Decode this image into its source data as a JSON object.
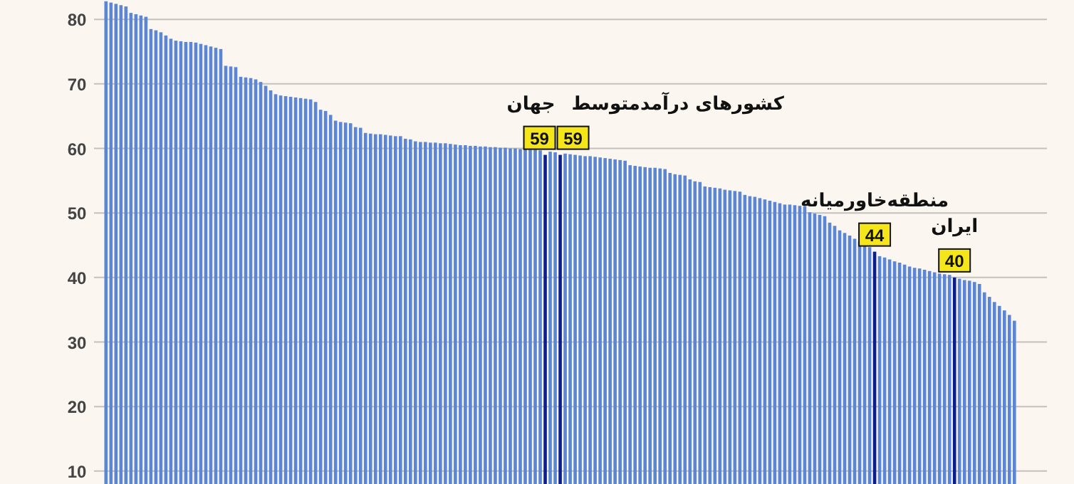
{
  "chart_data": {
    "type": "bar",
    "categories": [
      null,
      null,
      null,
      null,
      null,
      null,
      null,
      null,
      null,
      null,
      null,
      null,
      null,
      null,
      null,
      null,
      null,
      null,
      null,
      null,
      null,
      null,
      null,
      null,
      null,
      null,
      null,
      null,
      null,
      null,
      null,
      null,
      null,
      null,
      null,
      null,
      null,
      null,
      null,
      null,
      null,
      null,
      null,
      null,
      null,
      null,
      null,
      null,
      null,
      null,
      null,
      null,
      null,
      null,
      null,
      null,
      null,
      null,
      null,
      null,
      null,
      null,
      null,
      null,
      null,
      null,
      null,
      null,
      null,
      null,
      null,
      null,
      null,
      null,
      null,
      null,
      null,
      null,
      null,
      null,
      null,
      null,
      null,
      null,
      null,
      null,
      null,
      null,
      null,
      null,
      null,
      null,
      null,
      null,
      null,
      null,
      null,
      null,
      null,
      null,
      null,
      null,
      null,
      null,
      null,
      null,
      null,
      null,
      null,
      null,
      null,
      null,
      null,
      null,
      null,
      null,
      null,
      null,
      null,
      null,
      null,
      null,
      null,
      null,
      null,
      null,
      null,
      null,
      null,
      null,
      null,
      null,
      null,
      null,
      null,
      null,
      null,
      null,
      null,
      null,
      null,
      null,
      null,
      null,
      null,
      null,
      null,
      null,
      null,
      null,
      null,
      null,
      null,
      null,
      null,
      null,
      null,
      null,
      null,
      null,
      null,
      null,
      null,
      null,
      null,
      null,
      null,
      null,
      null,
      null,
      null,
      null,
      null,
      null,
      null,
      null,
      null,
      null,
      null,
      null,
      null,
      null,
      null
    ],
    "values": [
      82.8,
      82.6,
      82.4,
      82.2,
      82,
      81,
      80.8,
      80.6,
      80.4,
      78.5,
      78.3,
      78.0,
      77.5,
      77.0,
      76.7,
      76.6,
      76.5,
      76.5,
      76.4,
      76.2,
      76.0,
      75.8,
      75.6,
      75.4,
      72.8,
      72.7,
      72.6,
      71.1,
      71.0,
      70.9,
      70.7,
      70.3,
      69.7,
      69.0,
      68.4,
      68.2,
      68.1,
      68.0,
      67.9,
      67.8,
      67.7,
      67.6,
      67.2,
      66.0,
      65.8,
      65.2,
      64.3,
      64.1,
      64.0,
      63.9,
      63.3,
      63.2,
      62.4,
      62.3,
      62.2,
      62.2,
      62.1,
      62.0,
      61.9,
      61.9,
      61.5,
      61.4,
      61.1,
      61.0,
      61.0,
      60.9,
      60.9,
      60.8,
      60.8,
      60.7,
      60.6,
      60.5,
      60.5,
      60.4,
      60.4,
      60.3,
      60.3,
      60.2,
      60.2,
      60.1,
      60.1,
      60.0,
      60.0,
      59.9,
      59.9,
      59.8,
      59.8,
      59.7,
      59,
      59.5,
      59.4,
      59,
      59.2,
      59.1,
      59.0,
      58.9,
      58.8,
      58.8,
      58.7,
      58.6,
      58.5,
      58.4,
      58.3,
      58.2,
      58.1,
      57.4,
      57.3,
      57.2,
      57.1,
      57.0,
      57.0,
      56.9,
      56.8,
      56.2,
      56.0,
      55.9,
      55.8,
      55.2,
      54.9,
      54.8,
      54.1,
      54.0,
      53.9,
      53.8,
      53.6,
      53.5,
      53.4,
      53.3,
      52.8,
      52.6,
      52.5,
      52.3,
      52.1,
      51.9,
      51.7,
      51.5,
      51.3,
      51.3,
      51.2,
      51.1,
      51.0,
      50.1,
      49.9,
      49.7,
      49.5,
      48.5,
      48.0,
      47.3,
      46.9,
      46.5,
      46.0,
      45.6,
      45.2,
      44.7,
      44,
      43.3,
      43.1,
      42.8,
      42.5,
      42.3,
      42.0,
      41.7,
      41.5,
      41.4,
      41.2,
      41.0,
      40.8,
      40.6,
      40.5,
      40.4,
      40,
      39.8,
      39.6,
      39.5,
      39.3,
      39.0,
      37.7,
      37.0,
      36.2,
      35.6,
      34.9,
      34.2,
      33.3
    ],
    "value_labels": [
      null,
      null,
      null,
      null,
      null,
      null,
      null,
      null,
      null,
      null,
      null,
      null,
      null,
      null,
      null,
      null,
      null,
      null,
      null,
      null,
      null,
      null,
      null,
      null,
      null,
      null,
      null,
      null,
      null,
      null,
      null,
      null,
      null,
      null,
      null,
      null,
      null,
      null,
      null,
      null,
      null,
      null,
      null,
      null,
      null,
      null,
      null,
      null,
      null,
      null,
      null,
      null,
      null,
      null,
      null,
      null,
      null,
      null,
      null,
      null,
      null,
      null,
      null,
      null,
      null,
      null,
      null,
      null,
      null,
      null,
      null,
      null,
      null,
      null,
      null,
      null,
      null,
      null,
      null,
      null,
      null,
      null,
      null,
      null,
      null,
      null,
      null,
      null,
      "59",
      null,
      null,
      "59",
      null,
      null,
      null,
      null,
      null,
      null,
      null,
      null,
      null,
      null,
      null,
      null,
      null,
      null,
      null,
      null,
      null,
      null,
      null,
      null,
      null,
      null,
      null,
      null,
      null,
      null,
      null,
      null,
      null,
      null,
      null,
      null,
      null,
      null,
      null,
      null,
      null,
      null,
      null,
      null,
      null,
      null,
      null,
      null,
      null,
      null,
      null,
      null,
      null,
      null,
      null,
      null,
      null,
      null,
      null,
      null,
      null,
      null,
      null,
      null,
      null,
      null,
      "44",
      null,
      null,
      null,
      null,
      null,
      null,
      null,
      null,
      null,
      null,
      null,
      null,
      null,
      null,
      null,
      "40",
      null,
      null,
      null,
      null,
      null,
      null,
      null,
      null,
      null,
      null,
      null,
      null
    ],
    "colors": [
      "#5b86d6",
      "#5b86d6",
      "#5b86d6",
      "#5b86d6",
      "#5b86d6",
      "#5b86d6",
      "#5b86d6",
      "#5b86d6",
      "#5b86d6",
      "#5b86d6",
      "#5b86d6",
      "#5b86d6",
      "#5b86d6",
      "#5b86d6",
      "#5b86d6",
      "#5b86d6",
      "#5b86d6",
      "#5b86d6",
      "#5b86d6",
      "#5b86d6",
      "#5b86d6",
      "#5b86d6",
      "#5b86d6",
      "#5b86d6",
      "#5b86d6",
      "#5b86d6",
      "#5b86d6",
      "#5b86d6",
      "#5b86d6",
      "#5b86d6",
      "#5b86d6",
      "#5b86d6",
      "#5b86d6",
      "#5b86d6",
      "#5b86d6",
      "#5b86d6",
      "#5b86d6",
      "#5b86d6",
      "#5b86d6",
      "#5b86d6",
      "#5b86d6",
      "#5b86d6",
      "#5b86d6",
      "#5b86d6",
      "#5b86d6",
      "#5b86d6",
      "#5b86d6",
      "#5b86d6",
      "#5b86d6",
      "#5b86d6",
      "#5b86d6",
      "#5b86d6",
      "#5b86d6",
      "#5b86d6",
      "#5b86d6",
      "#5b86d6",
      "#5b86d6",
      "#5b86d6",
      "#5b86d6",
      "#5b86d6",
      "#5b86d6",
      "#5b86d6",
      "#5b86d6",
      "#5b86d6",
      "#5b86d6",
      "#5b86d6",
      "#5b86d6",
      "#5b86d6",
      "#5b86d6",
      "#5b86d6",
      "#5b86d6",
      "#5b86d6",
      "#5b86d6",
      "#5b86d6",
      "#5b86d6",
      "#5b86d6",
      "#5b86d6",
      "#5b86d6",
      "#5b86d6",
      "#5b86d6",
      "#5b86d6",
      "#5b86d6",
      "#5b86d6",
      "#5b86d6",
      "#5b86d6",
      "#5b86d6",
      "#5b86d6",
      "#5b86d6",
      "#0a1f8f",
      "#5b86d6",
      "#5b86d6",
      "#0a1f8f",
      "#5b86d6",
      "#5b86d6",
      "#5b86d6",
      "#5b86d6",
      "#5b86d6",
      "#5b86d6",
      "#5b86d6",
      "#5b86d6",
      "#5b86d6",
      "#5b86d6",
      "#5b86d6",
      "#5b86d6",
      "#5b86d6",
      "#5b86d6",
      "#5b86d6",
      "#5b86d6",
      "#5b86d6",
      "#5b86d6",
      "#5b86d6",
      "#5b86d6",
      "#5b86d6",
      "#5b86d6",
      "#5b86d6",
      "#5b86d6",
      "#5b86d6",
      "#5b86d6",
      "#5b86d6",
      "#5b86d6",
      "#5b86d6",
      "#5b86d6",
      "#5b86d6",
      "#5b86d6",
      "#5b86d6",
      "#5b86d6",
      "#5b86d6",
      "#5b86d6",
      "#5b86d6",
      "#5b86d6",
      "#5b86d6",
      "#5b86d6",
      "#5b86d6",
      "#5b86d6",
      "#5b86d6",
      "#5b86d6",
      "#5b86d6",
      "#5b86d6",
      "#5b86d6",
      "#5b86d6",
      "#5b86d6",
      "#5b86d6",
      "#5b86d6",
      "#5b86d6",
      "#5b86d6",
      "#5b86d6",
      "#5b86d6",
      "#5b86d6",
      "#5b86d6",
      "#5b86d6",
      "#5b86d6",
      "#5b86d6",
      "#5b86d6",
      "#5b86d6",
      "#0a1f8f",
      "#5b86d6",
      "#5b86d6",
      "#5b86d6",
      "#5b86d6",
      "#5b86d6",
      "#5b86d6",
      "#5b86d6",
      "#5b86d6",
      "#5b86d6",
      "#5b86d6",
      "#5b86d6",
      "#5b86d6",
      "#5b86d6",
      "#5b86d6",
      "#5b86d6",
      "#0a1f8f",
      "#5b86d6",
      "#5b86d6",
      "#5b86d6",
      "#5b86d6",
      "#5b86d6",
      "#5b86d6",
      "#5b86d6",
      "#5b86d6",
      "#5b86d6",
      "#5b86d6",
      "#5b86d6",
      "#5b86d6"
    ],
    "annotations": [
      "جهان",
      "کشورهای درآمدمتوسط",
      "منطقه‌خاورمیانه",
      "ایران"
    ],
    "ylim": [
      8,
      83
    ],
    "yticks": [
      10,
      20,
      30,
      40,
      50,
      60,
      70,
      80
    ],
    "grid": "y",
    "tick_labels": "y"
  }
}
